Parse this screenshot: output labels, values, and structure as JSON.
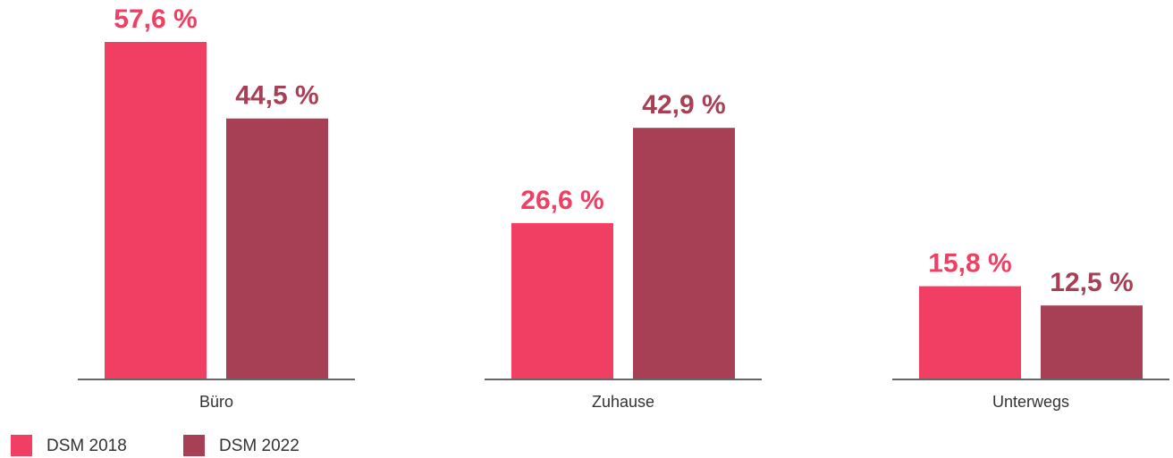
{
  "chart_data": {
    "type": "bar",
    "categories": [
      "Büro",
      "Zuhause",
      "Unterwegs"
    ],
    "series": [
      {
        "name": "DSM 2018",
        "color": "#f03f62",
        "values": [
          57.6,
          26.6,
          15.8
        ],
        "value_labels": [
          "57,6 %",
          "26,6 %",
          "15,8 %"
        ]
      },
      {
        "name": "DSM 2022",
        "color": "#a84055",
        "values": [
          44.5,
          42.9,
          12.5
        ],
        "value_labels": [
          "44,5 %",
          "42,9 %",
          "12,5 %"
        ]
      }
    ]
  }
}
